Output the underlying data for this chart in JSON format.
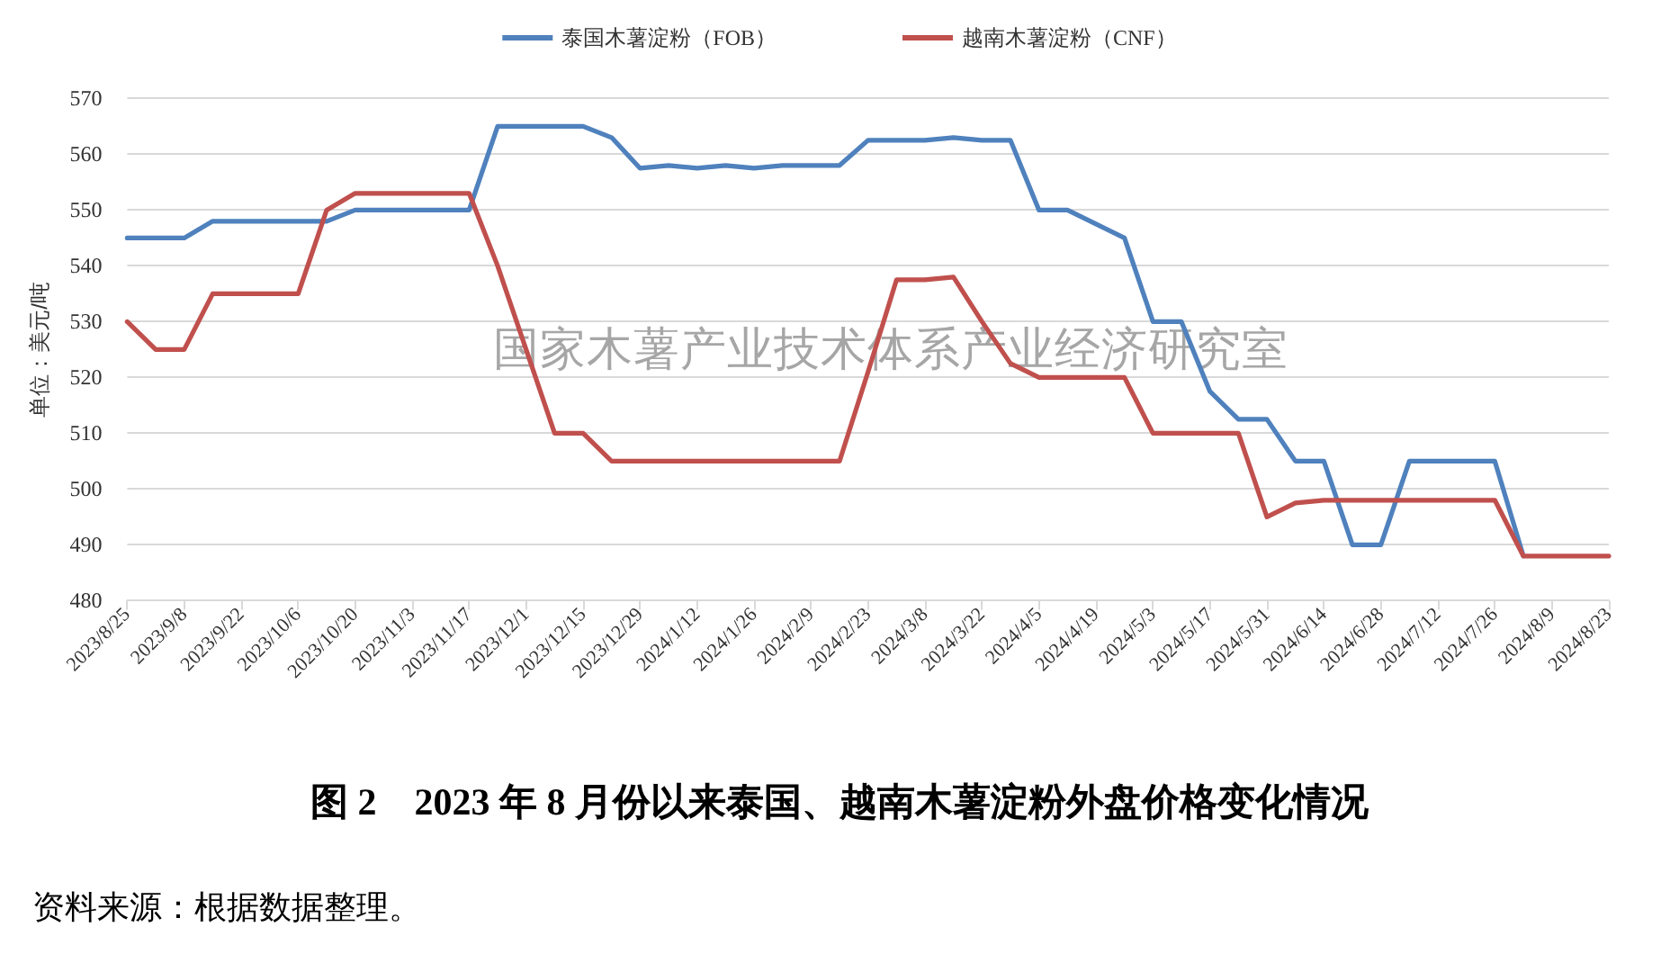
{
  "chart_data": {
    "type": "line",
    "title": "图 2　2023 年 8 月份以来泰国、越南木薯淀粉外盘价格变化情况",
    "ylabel": "单位：美元/吨",
    "annotations": [
      "国家木薯产业技术体系产业经济研究室",
      "资料来源：根据数据整理。"
    ],
    "categories": [
      "2023/8/25",
      null,
      "2023/9/8",
      null,
      "2023/9/22",
      null,
      "2023/10/6",
      null,
      "2023/10/20",
      null,
      "2023/11/3",
      null,
      "2023/11/17",
      null,
      "2023/12/1",
      null,
      "2023/12/15",
      null,
      "2023/12/29",
      null,
      "2024/1/12",
      null,
      "2024/1/26",
      null,
      "2024/2/9",
      null,
      "2024/2/23",
      null,
      "2024/3/8",
      null,
      "2024/3/22",
      null,
      "2024/4/5",
      null,
      "2024/4/19",
      null,
      "2024/5/3",
      null,
      "2024/5/17",
      null,
      "2024/5/31",
      null,
      "2024/6/14",
      null,
      "2024/6/28",
      null,
      "2024/7/12",
      null,
      "2024/7/26",
      null,
      "2024/8/9",
      null,
      "2024/8/23"
    ],
    "series": [
      {
        "name": "泰国木薯淀粉（FOB）",
        "color": "#4f81bd",
        "values": [
          545,
          545,
          545,
          548,
          548,
          548,
          548,
          548,
          550,
          550,
          550,
          550,
          550,
          565,
          565,
          565,
          565,
          563,
          557.5,
          558,
          557.5,
          558,
          557.5,
          558,
          558,
          558,
          562.5,
          562.5,
          562.5,
          563,
          562.5,
          562.5,
          550,
          550,
          547.5,
          545,
          530,
          530,
          517.5,
          512.5,
          512.5,
          505,
          505,
          490,
          490,
          505,
          505,
          505,
          505,
          488,
          null,
          null,
          null
        ]
      },
      {
        "name": "越南木薯淀粉（CNF）",
        "color": "#c0504d",
        "values": [
          530,
          525,
          525,
          535,
          535,
          535,
          535,
          550,
          553,
          553,
          553,
          553,
          553,
          540,
          525,
          510,
          510,
          505,
          505,
          505,
          505,
          505,
          505,
          505,
          505,
          505,
          521,
          537.5,
          537.5,
          538,
          530,
          522.5,
          520,
          520,
          520,
          520,
          510,
          510,
          510,
          510,
          495,
          497.5,
          498,
          498,
          498,
          498,
          498,
          498,
          498,
          488,
          488,
          488,
          488
        ]
      }
    ],
    "ylim": [
      480,
      570
    ],
    "yticks": [
      480,
      490,
      500,
      510,
      520,
      530,
      540,
      550,
      560,
      570
    ],
    "grid": "y",
    "legend": "top",
    "marker": "none",
    "line_style": "solid"
  }
}
